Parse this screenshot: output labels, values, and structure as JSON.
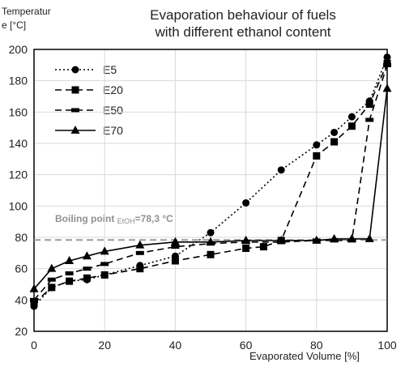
{
  "chart_data": {
    "type": "line",
    "title_line1": "Evaporation behaviour of fuels",
    "title_line2": "with different ethanol content",
    "xlabel": "Evaporated Volume [%]",
    "ylabel_line1": "Temperatur",
    "ylabel_line2": "e [°C]",
    "xlim": [
      0,
      100
    ],
    "ylim": [
      20,
      200
    ],
    "xticks": [
      0,
      20,
      40,
      60,
      80,
      100
    ],
    "yticks": [
      20,
      40,
      60,
      80,
      100,
      120,
      140,
      160,
      180,
      200
    ],
    "grid": true,
    "legend_position": "top-left",
    "annotation": {
      "text_main": "Boiling point ",
      "text_sub": "EtOH",
      "text_value": "=78,3 °C",
      "y": 78.3
    },
    "series": [
      {
        "name": "E5",
        "line_style": "dotted",
        "marker": "circle",
        "x": [
          0,
          5,
          10,
          15,
          20,
          30,
          40,
          50,
          60,
          70,
          80,
          85,
          90,
          95,
          100
        ],
        "y": [
          36,
          48,
          52,
          53,
          56,
          62,
          68,
          83,
          102,
          123,
          139,
          147,
          157,
          167,
          195
        ]
      },
      {
        "name": "E20",
        "line_style": "dashed",
        "marker": "square",
        "x": [
          0,
          5,
          10,
          15,
          20,
          30,
          40,
          50,
          60,
          65,
          70,
          80,
          85,
          90,
          95,
          100
        ],
        "y": [
          38,
          48,
          52,
          54,
          56,
          60,
          65,
          69,
          73,
          74,
          78,
          132,
          141,
          151,
          165,
          191
        ]
      },
      {
        "name": "E50",
        "line_style": "dashed",
        "marker": "dash",
        "x": [
          0,
          5,
          10,
          15,
          20,
          30,
          40,
          50,
          60,
          70,
          80,
          85,
          90,
          95,
          100
        ],
        "y": [
          40,
          53,
          57,
          60,
          63,
          70,
          74,
          76,
          77,
          77,
          78,
          78,
          78,
          155,
          190
        ]
      },
      {
        "name": "E70",
        "line_style": "solid",
        "marker": "triangle",
        "x": [
          0,
          5,
          10,
          15,
          20,
          30,
          40,
          50,
          60,
          70,
          80,
          85,
          90,
          95,
          100
        ],
        "y": [
          47,
          60,
          65,
          68,
          71,
          75,
          77,
          77,
          78,
          78,
          78,
          79,
          79,
          79,
          175
        ]
      }
    ]
  }
}
